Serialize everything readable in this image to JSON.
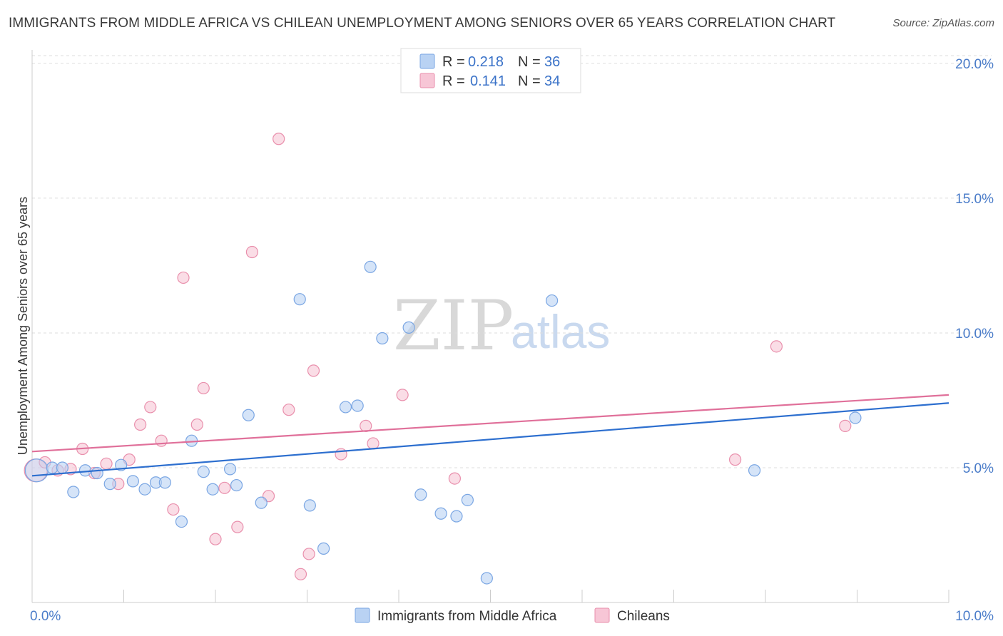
{
  "title": "IMMIGRANTS FROM MIDDLE AFRICA VS CHILEAN UNEMPLOYMENT AMONG SENIORS OVER 65 YEARS CORRELATION CHART",
  "source": "Source: ZipAtlas.com",
  "watermark": {
    "zip": "ZIP",
    "atlas": "atlas"
  },
  "colors": {
    "blue_fill": "#b9d2f3",
    "blue_stroke": "#7aa6e3",
    "blue_line": "#2d6fcf",
    "pink_fill": "#f7c6d6",
    "pink_stroke": "#e98fac",
    "pink_line": "#e0709a",
    "grid": "#dddddd",
    "axis": "#cccccc",
    "tick_label": "#4a7cc9"
  },
  "legend": {
    "r_label": "R =",
    "n_label": "N =",
    "entries": [
      {
        "series": "Immigrants from Middle Africa",
        "r": "0.218",
        "n": "36"
      },
      {
        "series": "Chileans",
        "r": "0.141",
        "n": "34"
      }
    ]
  },
  "chart_data": {
    "type": "scatter",
    "title": "IMMIGRANTS FROM MIDDLE AFRICA VS CHILEAN UNEMPLOYMENT AMONG SENIORS OVER 65 YEARS CORRELATION CHART",
    "xlabel": "",
    "ylabel": "Unemployment Among Seniors over 65 years",
    "xlim": [
      0,
      10
    ],
    "ylim": [
      0,
      20.5
    ],
    "x_tick_labels": [
      {
        "value": 0,
        "label": "0.0%"
      },
      {
        "value": 10,
        "label": "10.0%"
      }
    ],
    "x_minor_ticks": [
      1,
      2,
      3,
      4,
      5,
      6,
      7,
      8,
      9,
      10
    ],
    "y_tick_labels": [
      {
        "value": 5,
        "label": "5.0%"
      },
      {
        "value": 10,
        "label": "10.0%"
      },
      {
        "value": 15,
        "label": "15.0%"
      },
      {
        "value": 20,
        "label": "20.0%"
      }
    ],
    "grid": true,
    "series": [
      {
        "name": "Immigrants from Middle Africa",
        "color": "blue",
        "trend": {
          "x": [
            0,
            10
          ],
          "y": [
            4.7,
            7.4
          ]
        },
        "points": [
          {
            "x": 0.05,
            "y": 4.9,
            "big": true
          },
          {
            "x": 0.22,
            "y": 5.0
          },
          {
            "x": 0.33,
            "y": 5.0
          },
          {
            "x": 0.45,
            "y": 4.1
          },
          {
            "x": 0.58,
            "y": 4.9
          },
          {
            "x": 0.71,
            "y": 4.8
          },
          {
            "x": 0.85,
            "y": 4.4
          },
          {
            "x": 0.97,
            "y": 5.1
          },
          {
            "x": 1.1,
            "y": 4.5
          },
          {
            "x": 1.23,
            "y": 4.2
          },
          {
            "x": 1.35,
            "y": 4.45
          },
          {
            "x": 1.45,
            "y": 4.45
          },
          {
            "x": 1.63,
            "y": 3.0
          },
          {
            "x": 1.74,
            "y": 6.0
          },
          {
            "x": 1.87,
            "y": 4.85
          },
          {
            "x": 1.97,
            "y": 4.2
          },
          {
            "x": 2.16,
            "y": 4.95
          },
          {
            "x": 2.23,
            "y": 4.35
          },
          {
            "x": 2.36,
            "y": 6.95
          },
          {
            "x": 2.5,
            "y": 3.7
          },
          {
            "x": 2.92,
            "y": 11.25
          },
          {
            "x": 3.03,
            "y": 3.6
          },
          {
            "x": 3.18,
            "y": 2.0
          },
          {
            "x": 3.42,
            "y": 7.25
          },
          {
            "x": 3.55,
            "y": 7.3
          },
          {
            "x": 3.69,
            "y": 12.45
          },
          {
            "x": 3.82,
            "y": 9.8
          },
          {
            "x": 4.11,
            "y": 10.2
          },
          {
            "x": 4.24,
            "y": 4.0
          },
          {
            "x": 4.46,
            "y": 3.3
          },
          {
            "x": 4.63,
            "y": 3.2
          },
          {
            "x": 4.75,
            "y": 3.8
          },
          {
            "x": 4.96,
            "y": 0.9
          },
          {
            "x": 5.67,
            "y": 11.2
          },
          {
            "x": 7.88,
            "y": 4.9
          },
          {
            "x": 8.98,
            "y": 6.85
          }
        ]
      },
      {
        "name": "Chileans",
        "color": "pink",
        "trend": {
          "x": [
            0,
            10
          ],
          "y": [
            5.6,
            7.7
          ]
        },
        "points": [
          {
            "x": 0.04,
            "y": 4.9,
            "big": true
          },
          {
            "x": 0.14,
            "y": 5.2
          },
          {
            "x": 0.28,
            "y": 4.9
          },
          {
            "x": 0.42,
            "y": 4.95
          },
          {
            "x": 0.55,
            "y": 5.7
          },
          {
            "x": 0.68,
            "y": 4.8
          },
          {
            "x": 0.81,
            "y": 5.15
          },
          {
            "x": 0.94,
            "y": 4.4
          },
          {
            "x": 1.06,
            "y": 5.3
          },
          {
            "x": 1.18,
            "y": 6.6
          },
          {
            "x": 1.29,
            "y": 7.25
          },
          {
            "x": 1.41,
            "y": 6.0
          },
          {
            "x": 1.54,
            "y": 3.45
          },
          {
            "x": 1.65,
            "y": 12.05
          },
          {
            "x": 1.8,
            "y": 6.6
          },
          {
            "x": 1.87,
            "y": 7.95
          },
          {
            "x": 2.0,
            "y": 2.35
          },
          {
            "x": 2.1,
            "y": 4.25
          },
          {
            "x": 2.24,
            "y": 2.8
          },
          {
            "x": 2.4,
            "y": 13.0
          },
          {
            "x": 2.58,
            "y": 3.95
          },
          {
            "x": 2.69,
            "y": 17.2
          },
          {
            "x": 2.8,
            "y": 7.15
          },
          {
            "x": 2.93,
            "y": 1.05
          },
          {
            "x": 3.02,
            "y": 1.8
          },
          {
            "x": 3.07,
            "y": 8.6
          },
          {
            "x": 3.37,
            "y": 5.5
          },
          {
            "x": 3.64,
            "y": 6.55
          },
          {
            "x": 3.72,
            "y": 5.9
          },
          {
            "x": 4.04,
            "y": 7.7
          },
          {
            "x": 4.61,
            "y": 4.6
          },
          {
            "x": 7.67,
            "y": 5.3
          },
          {
            "x": 8.12,
            "y": 9.5
          },
          {
            "x": 8.87,
            "y": 6.55
          }
        ]
      }
    ]
  }
}
